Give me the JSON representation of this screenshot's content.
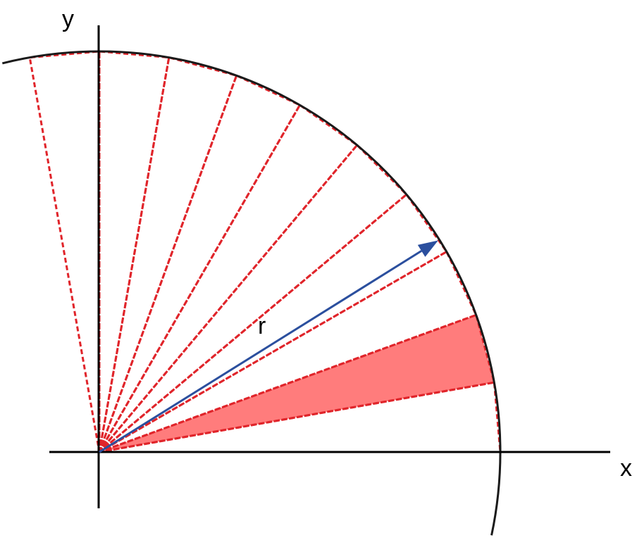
{
  "labels": {
    "x_axis": "x",
    "y_axis": "y",
    "radius": "r"
  },
  "colors": {
    "axes": "#000000",
    "arc": "#1a1a1a",
    "dashed_sectors": "#e0242a",
    "highlight_fill": "#ff7c7c",
    "radius_arrow": "#2b4f9e"
  },
  "diagram": {
    "sector_count": 10,
    "sector_width_deg": 10,
    "highlighted_sector_index": 1,
    "arrow_angle_deg": 32
  }
}
